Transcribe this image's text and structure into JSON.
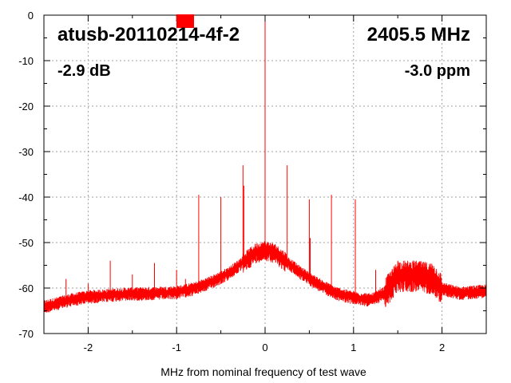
{
  "chart_data": {
    "type": "line",
    "title": "atusb-20110214-4f-2",
    "frequency_label": "2405.5 MHz",
    "level_label": "-2.9 dB",
    "offset_label": "-3.0 ppm",
    "xlabel": "MHz from nominal frequency of test wave",
    "ylabel": "",
    "xlim": [
      -2.5,
      2.5
    ],
    "ylim": [
      -70,
      0
    ],
    "x_ticks": [
      -2,
      -1,
      0,
      1,
      2
    ],
    "y_ticks": [
      0,
      -10,
      -20,
      -30,
      -40,
      -50,
      -60,
      -70
    ],
    "grid": true,
    "series": [
      {
        "color": "#ff0000",
        "noise_floor": [
          [
            -2.5,
            -64
          ],
          [
            -2.2,
            -62.5
          ],
          [
            -2.0,
            -61.8
          ],
          [
            -1.6,
            -61.2
          ],
          [
            -1.2,
            -61
          ],
          [
            -1.0,
            -60.8
          ],
          [
            -0.8,
            -60
          ],
          [
            -0.6,
            -58.5
          ],
          [
            -0.4,
            -56.5
          ],
          [
            -0.2,
            -53.5
          ],
          [
            -0.1,
            -52
          ],
          [
            0.0,
            -51.5
          ],
          [
            0.1,
            -52
          ],
          [
            0.2,
            -53.5
          ],
          [
            0.4,
            -56.5
          ],
          [
            0.6,
            -59
          ],
          [
            0.8,
            -61
          ],
          [
            1.0,
            -62
          ],
          [
            1.2,
            -62.5
          ],
          [
            1.35,
            -61
          ],
          [
            1.5,
            -57
          ],
          [
            1.7,
            -57
          ],
          [
            1.9,
            -57.5
          ],
          [
            2.0,
            -60
          ],
          [
            2.2,
            -61
          ],
          [
            2.5,
            -60.5
          ]
        ],
        "spikes": [
          [
            0.0,
            0
          ],
          [
            -0.75,
            -39.5
          ],
          [
            -0.5,
            -40
          ],
          [
            -0.25,
            -33
          ],
          [
            -0.24,
            -37.5
          ],
          [
            0.25,
            -33
          ],
          [
            0.5,
            -40.5
          ],
          [
            0.51,
            -49
          ],
          [
            0.75,
            -39.5
          ],
          [
            1.02,
            -40.5
          ],
          [
            -1.75,
            -54
          ],
          [
            -1.5,
            -57
          ],
          [
            -1.25,
            -54.5
          ],
          [
            -1.0,
            -56
          ],
          [
            -0.9,
            -58
          ],
          [
            1.25,
            -56
          ],
          [
            -2.0,
            -59
          ],
          [
            -2.25,
            -58
          ],
          [
            1.5,
            -54
          ]
        ]
      }
    ]
  }
}
